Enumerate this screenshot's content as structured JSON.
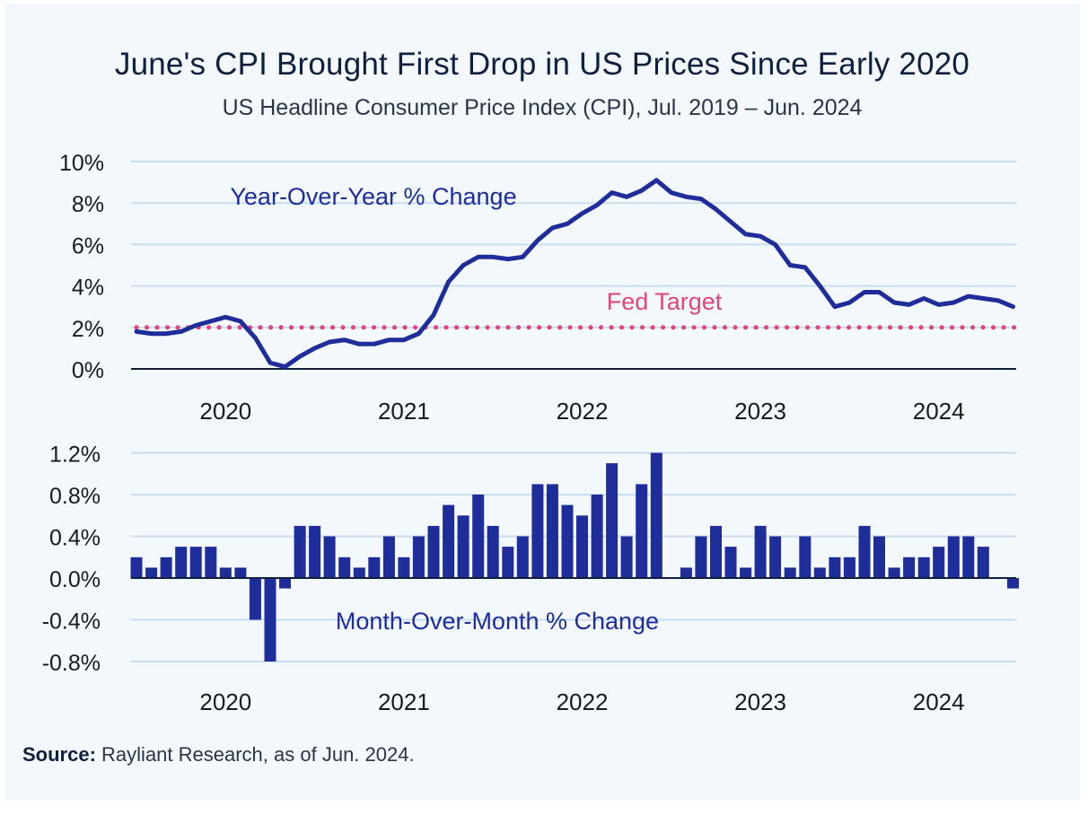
{
  "colors": {
    "line": "#1f2d9a",
    "bar": "#1f2d9a",
    "target": "#e0447f",
    "grid": "#c9ddef",
    "axis": "#0f1f3d",
    "background": "#f3f8fc"
  },
  "title": "June's CPI Brought First Drop in US Prices Since Early 2020",
  "subtitle": "US Headline Consumer Price Index (CPI), Jul. 2019 – Jun. 2024",
  "source": {
    "label": "Source:",
    "text": "Rayliant Research, as of Jun. 2024."
  },
  "chart_data": [
    {
      "type": "line",
      "annotation": "Year-Over-Year % Change",
      "target_label": "Fed Target",
      "target_value": 2,
      "x_tick_labels": [
        "2020",
        "2021",
        "2022",
        "2023",
        "2024"
      ],
      "y_ticks": [
        "0%",
        "2%",
        "4%",
        "6%",
        "8%",
        "10%"
      ],
      "ylim": [
        0,
        10
      ],
      "x": [
        "2019-07",
        "2019-08",
        "2019-09",
        "2019-10",
        "2019-11",
        "2019-12",
        "2020-01",
        "2020-02",
        "2020-03",
        "2020-04",
        "2020-05",
        "2020-06",
        "2020-07",
        "2020-08",
        "2020-09",
        "2020-10",
        "2020-11",
        "2020-12",
        "2021-01",
        "2021-02",
        "2021-03",
        "2021-04",
        "2021-05",
        "2021-06",
        "2021-07",
        "2021-08",
        "2021-09",
        "2021-10",
        "2021-11",
        "2021-12",
        "2022-01",
        "2022-02",
        "2022-03",
        "2022-04",
        "2022-05",
        "2022-06",
        "2022-07",
        "2022-08",
        "2022-09",
        "2022-10",
        "2022-11",
        "2022-12",
        "2023-01",
        "2023-02",
        "2023-03",
        "2023-04",
        "2023-05",
        "2023-06",
        "2023-07",
        "2023-08",
        "2023-09",
        "2023-10",
        "2023-11",
        "2023-12",
        "2024-01",
        "2024-02",
        "2024-03",
        "2024-04",
        "2024-05",
        "2024-06"
      ],
      "values": [
        1.8,
        1.7,
        1.7,
        1.8,
        2.1,
        2.3,
        2.5,
        2.3,
        1.5,
        0.3,
        0.1,
        0.6,
        1.0,
        1.3,
        1.4,
        1.2,
        1.2,
        1.4,
        1.4,
        1.7,
        2.6,
        4.2,
        5.0,
        5.4,
        5.4,
        5.3,
        5.4,
        6.2,
        6.8,
        7.0,
        7.5,
        7.9,
        8.5,
        8.3,
        8.6,
        9.1,
        8.5,
        8.3,
        8.2,
        7.7,
        7.1,
        6.5,
        6.4,
        6.0,
        5.0,
        4.9,
        4.0,
        3.0,
        3.2,
        3.7,
        3.7,
        3.2,
        3.1,
        3.4,
        3.1,
        3.2,
        3.5,
        3.4,
        3.3,
        3.0
      ]
    },
    {
      "type": "bar",
      "annotation": "Month-Over-Month % Change",
      "x_tick_labels": [
        "2020",
        "2021",
        "2022",
        "2023",
        "2024"
      ],
      "y_ticks": [
        "-0.8%",
        "-0.4%",
        "0.0%",
        "0.4%",
        "0.8%",
        "1.2%"
      ],
      "ylim": [
        -0.8,
        1.2
      ],
      "x": [
        "2019-07",
        "2019-08",
        "2019-09",
        "2019-10",
        "2019-11",
        "2019-12",
        "2020-01",
        "2020-02",
        "2020-03",
        "2020-04",
        "2020-05",
        "2020-06",
        "2020-07",
        "2020-08",
        "2020-09",
        "2020-10",
        "2020-11",
        "2020-12",
        "2021-01",
        "2021-02",
        "2021-03",
        "2021-04",
        "2021-05",
        "2021-06",
        "2021-07",
        "2021-08",
        "2021-09",
        "2021-10",
        "2021-11",
        "2021-12",
        "2022-01",
        "2022-02",
        "2022-03",
        "2022-04",
        "2022-05",
        "2022-06",
        "2022-07",
        "2022-08",
        "2022-09",
        "2022-10",
        "2022-11",
        "2022-12",
        "2023-01",
        "2023-02",
        "2023-03",
        "2023-04",
        "2023-05",
        "2023-06",
        "2023-07",
        "2023-08",
        "2023-09",
        "2023-10",
        "2023-11",
        "2023-12",
        "2024-01",
        "2024-02",
        "2024-03",
        "2024-04",
        "2024-05",
        "2024-06"
      ],
      "values": [
        0.2,
        0.1,
        0.2,
        0.3,
        0.3,
        0.3,
        0.1,
        0.1,
        -0.4,
        -0.8,
        -0.1,
        0.5,
        0.5,
        0.4,
        0.2,
        0.1,
        0.2,
        0.4,
        0.2,
        0.4,
        0.5,
        0.7,
        0.6,
        0.8,
        0.5,
        0.3,
        0.4,
        0.9,
        0.9,
        0.7,
        0.6,
        0.8,
        1.1,
        0.4,
        0.9,
        1.2,
        0.0,
        0.1,
        0.4,
        0.5,
        0.3,
        0.1,
        0.5,
        0.4,
        0.1,
        0.4,
        0.1,
        0.2,
        0.2,
        0.5,
        0.4,
        0.1,
        0.2,
        0.2,
        0.3,
        0.4,
        0.4,
        0.3,
        0.0,
        -0.1
      ]
    }
  ]
}
